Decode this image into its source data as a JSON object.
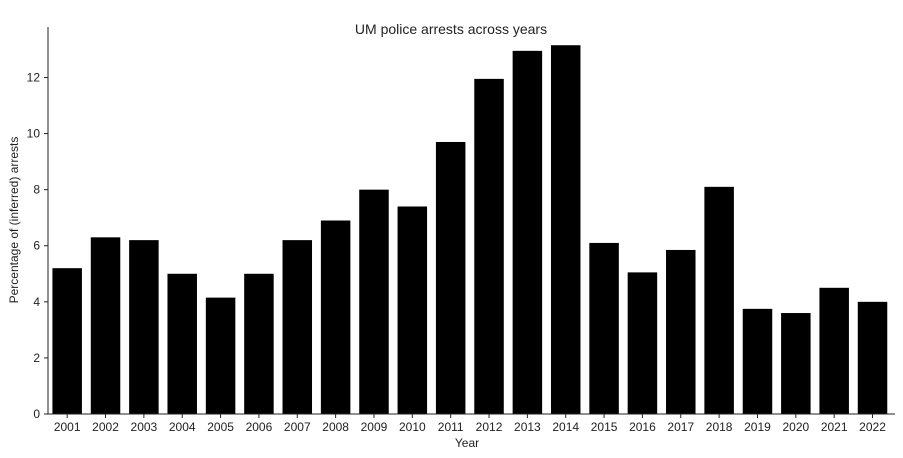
{
  "chart_data": {
    "type": "bar",
    "title": "UM police arrests across years",
    "xlabel": "Year",
    "ylabel": "Percentage of (inferred) arrests",
    "categories": [
      "2001",
      "2002",
      "2003",
      "2004",
      "2005",
      "2006",
      "2007",
      "2008",
      "2009",
      "2010",
      "2011",
      "2012",
      "2013",
      "2014",
      "2015",
      "2016",
      "2017",
      "2018",
      "2019",
      "2020",
      "2021",
      "2022"
    ],
    "values": [
      5.2,
      6.3,
      6.2,
      5.0,
      4.15,
      5.0,
      6.2,
      6.9,
      8.0,
      7.4,
      9.7,
      11.95,
      12.95,
      13.15,
      6.1,
      5.05,
      5.85,
      8.1,
      3.75,
      3.6,
      4.5,
      4.0
    ],
    "yticks": [
      0,
      2,
      4,
      6,
      8,
      10,
      12
    ],
    "ylim": [
      0,
      13.8
    ],
    "grid": false,
    "bar_color": "#000000"
  }
}
